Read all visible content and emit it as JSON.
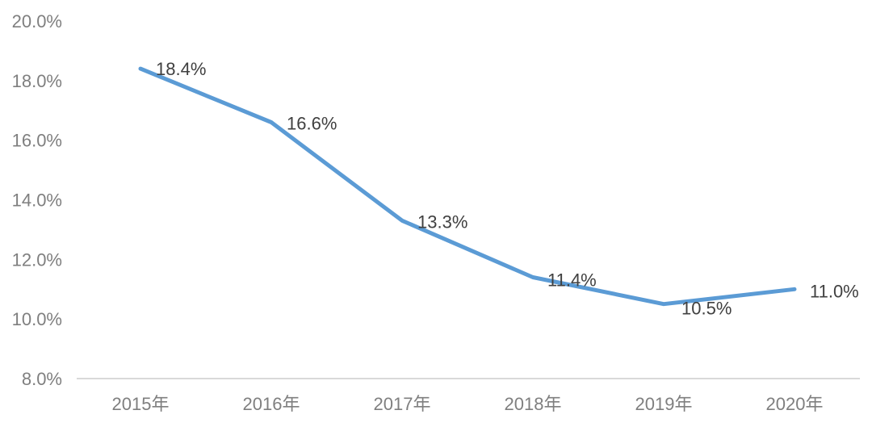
{
  "chart_data": {
    "type": "line",
    "title": "",
    "xlabel": "",
    "ylabel": "",
    "categories": [
      "2015年",
      "2016年",
      "2017年",
      "2018年",
      "2019年",
      "2020年"
    ],
    "series": [
      {
        "name": "percentage",
        "values": [
          18.4,
          16.6,
          13.3,
          11.4,
          10.5,
          11.0
        ],
        "data_labels": [
          "18.4%",
          "16.6%",
          "13.3%",
          "11.4%",
          "10.5%",
          "11.0%"
        ]
      }
    ],
    "ylim": [
      8,
      20
    ],
    "y_ticks": [
      8,
      10,
      12,
      14,
      16,
      18,
      20
    ],
    "y_tick_labels": [
      "8.0%",
      "10.0%",
      "12.0%",
      "14.0%",
      "16.0%",
      "18.0%",
      "20.0%"
    ],
    "grid": false,
    "legend": false,
    "colors": {
      "line": "#5B9BD5",
      "axis_line": "#D9D9D9",
      "tick_label": "#7F7F7F",
      "data_label": "#404040",
      "background": "#FFFFFF"
    }
  }
}
